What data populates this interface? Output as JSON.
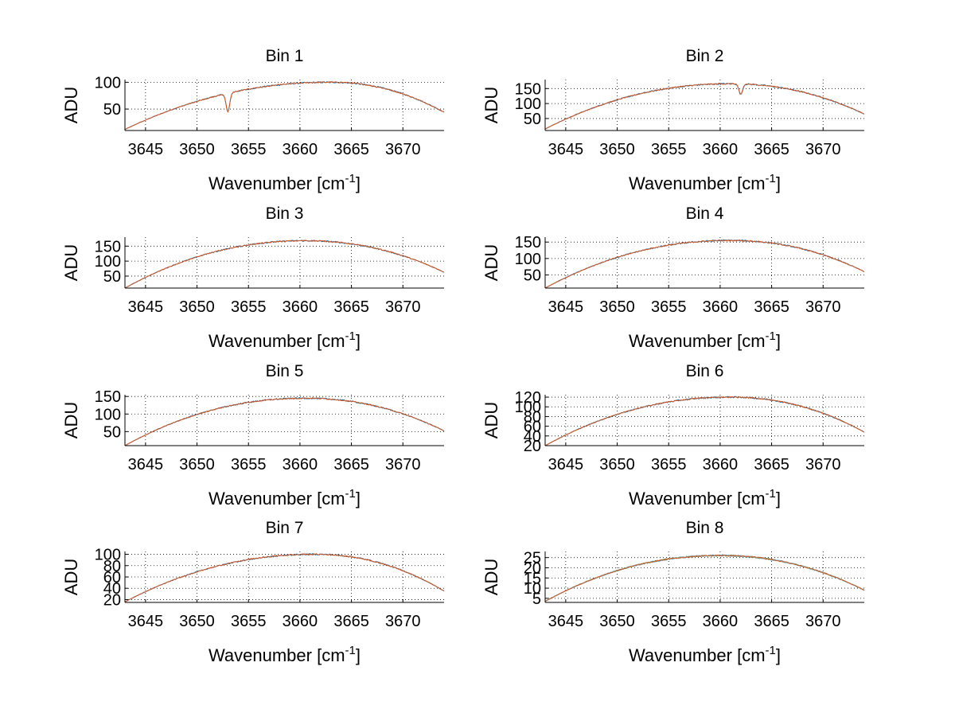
{
  "chart_data": [
    {
      "type": "line",
      "title": "Bin 1",
      "xlabel": "Wavenumber [cm-1]",
      "ylabel": "ADU",
      "xlim": [
        3643,
        3674
      ],
      "ylim": [
        10,
        105
      ],
      "xticks": [
        3645,
        3650,
        3655,
        3660,
        3665,
        3670
      ],
      "yticks": [
        50,
        100
      ],
      "grid": true,
      "peak_center": 3663,
      "peak_value": 100,
      "edge_left": 12,
      "edge_right": 44,
      "dip": {
        "x": 3653,
        "value": 45
      },
      "series": [
        {
          "color": "#0072bd"
        },
        {
          "color": "#d95319"
        }
      ]
    },
    {
      "type": "line",
      "title": "Bin 2",
      "xlabel": "Wavenumber [cm-1]",
      "ylabel": "ADU",
      "xlim": [
        3643,
        3674
      ],
      "ylim": [
        10,
        180
      ],
      "xticks": [
        3645,
        3650,
        3655,
        3660,
        3665,
        3670
      ],
      "yticks": [
        50,
        100,
        150
      ],
      "grid": true,
      "peak_center": 3661,
      "peak_value": 166,
      "edge_left": 15,
      "edge_right": 65,
      "dip": {
        "x": 3662,
        "value": 130
      },
      "series": [
        {
          "color": "#0072bd"
        },
        {
          "color": "#d95319"
        }
      ]
    },
    {
      "type": "line",
      "title": "Bin 3",
      "xlabel": "Wavenumber [cm-1]",
      "ylabel": "ADU",
      "xlim": [
        3643,
        3674
      ],
      "ylim": [
        10,
        180
      ],
      "xticks": [
        3645,
        3650,
        3655,
        3660,
        3665,
        3670
      ],
      "yticks": [
        50,
        100,
        150
      ],
      "grid": true,
      "peak_center": 3660.5,
      "peak_value": 168,
      "edge_left": 10,
      "edge_right": 63,
      "series": [
        {
          "color": "#0072bd"
        },
        {
          "color": "#d95319"
        }
      ]
    },
    {
      "type": "line",
      "title": "Bin 4",
      "xlabel": "Wavenumber [cm-1]",
      "ylabel": "ADU",
      "xlim": [
        3643,
        3674
      ],
      "ylim": [
        10,
        165
      ],
      "xticks": [
        3645,
        3650,
        3655,
        3660,
        3665,
        3670
      ],
      "yticks": [
        50,
        100,
        150
      ],
      "grid": true,
      "peak_center": 3661,
      "peak_value": 155,
      "edge_left": 10,
      "edge_right": 60,
      "series": [
        {
          "color": "#0072bd"
        },
        {
          "color": "#d95319"
        }
      ]
    },
    {
      "type": "line",
      "title": "Bin 5",
      "xlabel": "Wavenumber [cm-1]",
      "ylabel": "ADU",
      "xlim": [
        3643,
        3674
      ],
      "ylim": [
        10,
        155
      ],
      "xticks": [
        3645,
        3650,
        3655,
        3660,
        3665,
        3670
      ],
      "yticks": [
        50,
        100,
        150
      ],
      "grid": true,
      "peak_center": 3660.5,
      "peak_value": 145,
      "edge_left": 10,
      "edge_right": 52,
      "series": [
        {
          "color": "#0072bd"
        },
        {
          "color": "#d95319"
        }
      ]
    },
    {
      "type": "line",
      "title": "Bin 6",
      "xlabel": "Wavenumber [cm-1]",
      "ylabel": "ADU",
      "xlim": [
        3643,
        3674
      ],
      "ylim": [
        20,
        125
      ],
      "xticks": [
        3645,
        3650,
        3655,
        3660,
        3665,
        3670
      ],
      "yticks": [
        20,
        40,
        60,
        80,
        100,
        120
      ],
      "grid": true,
      "peak_center": 3661,
      "peak_value": 120,
      "edge_left": 20,
      "edge_right": 48,
      "series": [
        {
          "color": "#0072bd"
        },
        {
          "color": "#d95319"
        }
      ]
    },
    {
      "type": "line",
      "title": "Bin 7",
      "xlabel": "Wavenumber [cm-1]",
      "ylabel": "ADU",
      "xlim": [
        3643,
        3674
      ],
      "ylim": [
        15,
        105
      ],
      "xticks": [
        3645,
        3650,
        3655,
        3660,
        3665,
        3670
      ],
      "yticks": [
        20,
        40,
        60,
        80,
        100
      ],
      "grid": true,
      "peak_center": 3661.5,
      "peak_value": 100,
      "edge_left": 16,
      "edge_right": 35,
      "series": [
        {
          "color": "#0072bd"
        },
        {
          "color": "#d95319"
        }
      ]
    },
    {
      "type": "line",
      "title": "Bin 8",
      "xlabel": "Wavenumber [cm-1]",
      "ylabel": "ADU",
      "xlim": [
        3643,
        3674
      ],
      "ylim": [
        3,
        28
      ],
      "xticks": [
        3645,
        3650,
        3655,
        3660,
        3665,
        3670
      ],
      "yticks": [
        5,
        10,
        15,
        20,
        25
      ],
      "grid": true,
      "peak_center": 3660,
      "peak_value": 26,
      "edge_left": 3.5,
      "edge_right": 9,
      "series": [
        {
          "color": "#0072bd"
        },
        {
          "color": "#77ac30"
        },
        {
          "color": "#4dbeee"
        },
        {
          "color": "#d95319"
        }
      ]
    }
  ]
}
